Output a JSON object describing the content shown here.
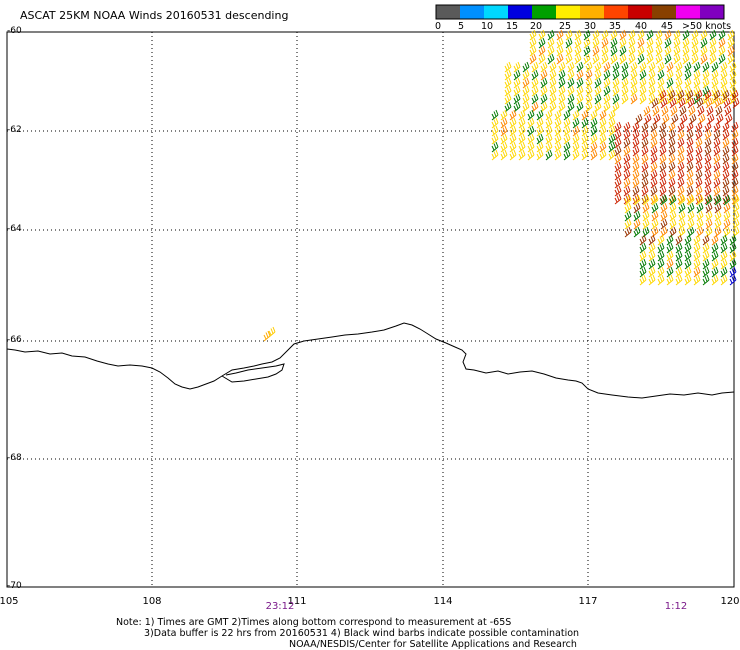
{
  "title": "ASCAT 25KM NOAA Winds 20160531 descending",
  "legend": {
    "colors": [
      "#5a5a5a",
      "#0090ff",
      "#00d8ff",
      "#0000e0",
      "#00a000",
      "#ffee00",
      "#ffb000",
      "#ff4400",
      "#c80000",
      "#884000",
      "#f000f0",
      "#8000c0"
    ],
    "labels": [
      "0",
      "5",
      "10",
      "15",
      "20",
      "25",
      "30",
      "35",
      "40",
      "45",
      ">50 knots"
    ]
  },
  "latitudes": [
    "-60",
    "-62",
    "-64",
    "-66",
    "-68",
    "-70"
  ],
  "longitudes": [
    "105",
    "108",
    "111",
    "114",
    "117",
    "120"
  ],
  "times": {
    "left": "23:12",
    "right": "1:12"
  },
  "notes": [
    "Note: 1) Times are GMT 2)Times along bottom correspond to measurement at -65S",
    "3)Data buffer is 22 hrs from 20160531 4) Black wind barbs indicate possible contamination",
    "NOAA/NESDIS/Center for Satellite Applications and Research"
  ]
}
